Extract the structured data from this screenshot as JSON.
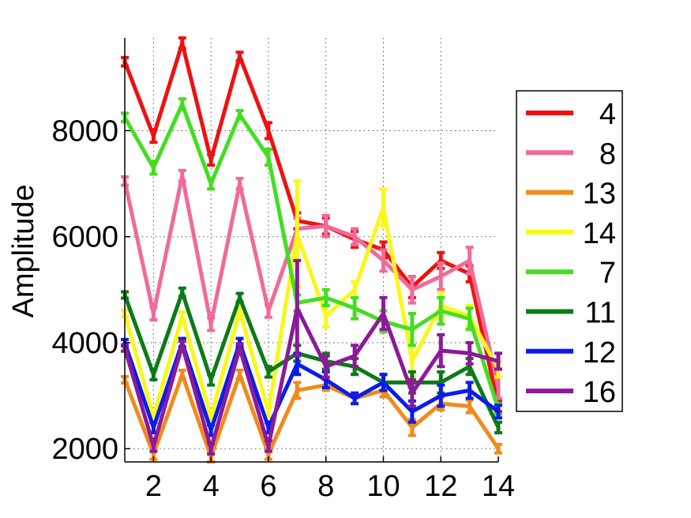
{
  "chart_data": {
    "type": "line",
    "title": "",
    "xlabel": "",
    "ylabel": "Amplitude",
    "xlim": [
      1,
      14
    ],
    "ylim": [
      1750,
      9750
    ],
    "xticks": [
      2,
      4,
      6,
      8,
      10,
      12,
      14
    ],
    "yticks": [
      2000,
      4000,
      6000,
      8000
    ],
    "grid": true,
    "legend_position": "right",
    "x": [
      1,
      2,
      3,
      4,
      5,
      6,
      7,
      8,
      9,
      10,
      11,
      12,
      13,
      14
    ],
    "series": [
      {
        "name": "4",
        "color": "#ee1111",
        "values": [
          9300,
          7900,
          9650,
          7450,
          9400,
          8000,
          6300,
          6200,
          5950,
          5750,
          5050,
          5550,
          5300,
          2800
        ],
        "errors": [
          80,
          120,
          100,
          100,
          80,
          150,
          150,
          150,
          150,
          150,
          200,
          150,
          150,
          100
        ]
      },
      {
        "name": "8",
        "color": "#f06b9a",
        "values": [
          7050,
          4550,
          7150,
          4350,
          7000,
          4600,
          6150,
          6200,
          6000,
          5550,
          5000,
          5250,
          5550,
          3150
        ],
        "errors": [
          80,
          120,
          100,
          120,
          100,
          120,
          200,
          200,
          150,
          200,
          250,
          250,
          250,
          200
        ]
      },
      {
        "name": "13",
        "color": "#f28a1c",
        "values": [
          3300,
          1900,
          3400,
          1850,
          3400,
          1900,
          3100,
          3200,
          2950,
          3100,
          2400,
          2850,
          2800,
          2000
        ],
        "errors": [
          60,
          100,
          80,
          100,
          80,
          100,
          150,
          100,
          100,
          120,
          150,
          120,
          120,
          80
        ]
      },
      {
        "name": "14",
        "color": "#f8f81a",
        "values": [
          4550,
          2600,
          4500,
          2600,
          4600,
          2700,
          6050,
          4500,
          5000,
          6550,
          3650,
          4700,
          4500,
          3500
        ],
        "errors": [
          60,
          100,
          80,
          100,
          80,
          100,
          1000,
          200,
          150,
          350,
          300,
          250,
          200,
          150
        ]
      },
      {
        "name": "7",
        "color": "#44dd22",
        "values": [
          8250,
          7300,
          8500,
          7000,
          8300,
          7500,
          4750,
          4850,
          4650,
          4400,
          4250,
          4600,
          4450,
          2750
        ],
        "errors": [
          80,
          120,
          100,
          100,
          80,
          150,
          150,
          150,
          200,
          200,
          300,
          250,
          200,
          100
        ]
      },
      {
        "name": "11",
        "color": "#0d7a18",
        "values": [
          4900,
          3400,
          4950,
          3300,
          4850,
          3450,
          3800,
          3650,
          3550,
          3250,
          3250,
          3250,
          3550,
          2400
        ],
        "errors": [
          60,
          100,
          80,
          100,
          80,
          100,
          150,
          150,
          150,
          150,
          200,
          200,
          150,
          100
        ]
      },
      {
        "name": "12",
        "color": "#0a1de8",
        "values": [
          4000,
          2400,
          4000,
          2350,
          4000,
          2400,
          3600,
          3300,
          2950,
          3250,
          2700,
          3000,
          3100,
          2700
        ],
        "errors": [
          60,
          100,
          80,
          100,
          80,
          100,
          200,
          150,
          100,
          150,
          200,
          200,
          150,
          120
        ]
      },
      {
        "name": "16",
        "color": "#8b1a9a",
        "values": [
          3900,
          2050,
          3950,
          2000,
          3900,
          2050,
          4650,
          3550,
          3750,
          4550,
          3050,
          3850,
          3800,
          3650
        ],
        "errors": [
          60,
          100,
          80,
          100,
          80,
          100,
          900,
          200,
          200,
          300,
          250,
          300,
          200,
          150
        ]
      }
    ]
  }
}
